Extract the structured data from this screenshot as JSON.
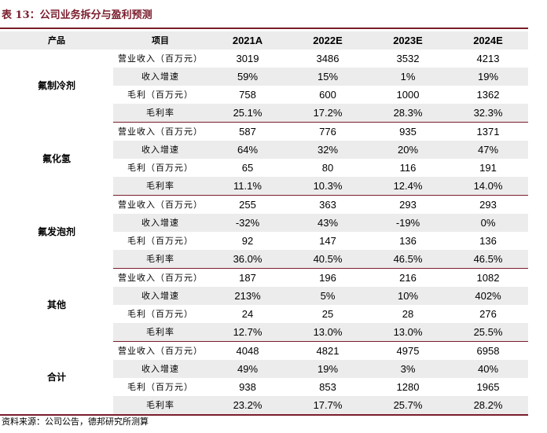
{
  "title": "表 13：公司业务拆分与盈利预测",
  "header": {
    "product": "产品",
    "item": "项目",
    "years": [
      "2021A",
      "2022E",
      "2023E",
      "2024E"
    ]
  },
  "groups": [
    {
      "name": "氟制冷剂",
      "rows": [
        {
          "label": "营业收入（百万元）",
          "values": [
            "3019",
            "3486",
            "3532",
            "4213"
          ]
        },
        {
          "label": "收入增速",
          "values": [
            "59%",
            "15%",
            "1%",
            "19%"
          ]
        },
        {
          "label": "毛利（百万元）",
          "values": [
            "758",
            "600",
            "1000",
            "1362"
          ]
        },
        {
          "label": "毛利率",
          "values": [
            "25.1%",
            "17.2%",
            "28.3%",
            "32.3%"
          ]
        }
      ]
    },
    {
      "name": "氟化氢",
      "rows": [
        {
          "label": "营业收入（百万元）",
          "values": [
            "587",
            "776",
            "935",
            "1371"
          ]
        },
        {
          "label": "收入增速",
          "values": [
            "64%",
            "32%",
            "20%",
            "47%"
          ]
        },
        {
          "label": "毛利（百万元）",
          "values": [
            "65",
            "80",
            "116",
            "191"
          ]
        },
        {
          "label": "毛利率",
          "values": [
            "11.1%",
            "10.3%",
            "12.4%",
            "14.0%"
          ]
        }
      ]
    },
    {
      "name": "氟发泡剂",
      "rows": [
        {
          "label": "营业收入（百万元）",
          "values": [
            "255",
            "363",
            "293",
            "293"
          ]
        },
        {
          "label": "收入增速",
          "values": [
            "-32%",
            "43%",
            "-19%",
            "0%"
          ]
        },
        {
          "label": "毛利（百万元）",
          "values": [
            "92",
            "147",
            "136",
            "136"
          ]
        },
        {
          "label": "毛利率",
          "values": [
            "36.0%",
            "40.5%",
            "46.5%",
            "46.5%"
          ]
        }
      ]
    },
    {
      "name": "其他",
      "rows": [
        {
          "label": "营业收入（百万元）",
          "values": [
            "187",
            "196",
            "216",
            "1082"
          ]
        },
        {
          "label": "收入增速",
          "values": [
            "213%",
            "5%",
            "10%",
            "402%"
          ]
        },
        {
          "label": "毛利（百万元）",
          "values": [
            "24",
            "25",
            "28",
            "276"
          ]
        },
        {
          "label": "毛利率",
          "values": [
            "12.7%",
            "13.0%",
            "13.0%",
            "25.5%"
          ]
        }
      ]
    },
    {
      "name": "合计",
      "rows": [
        {
          "label": "营业收入（百万元）",
          "values": [
            "4048",
            "4821",
            "4975",
            "6958"
          ]
        },
        {
          "label": "收入增速",
          "values": [
            "49%",
            "19%",
            "3%",
            "40%"
          ]
        },
        {
          "label": "毛利（百万元）",
          "values": [
            "938",
            "853",
            "1280",
            "1965"
          ]
        },
        {
          "label": "毛利率",
          "values": [
            "23.2%",
            "17.7%",
            "25.7%",
            "28.2%"
          ]
        }
      ]
    }
  ],
  "source": "资料来源：公司公告，德邦研究所测算",
  "colors": {
    "accent": "#7a1d2c",
    "shade": "#ececec"
  }
}
